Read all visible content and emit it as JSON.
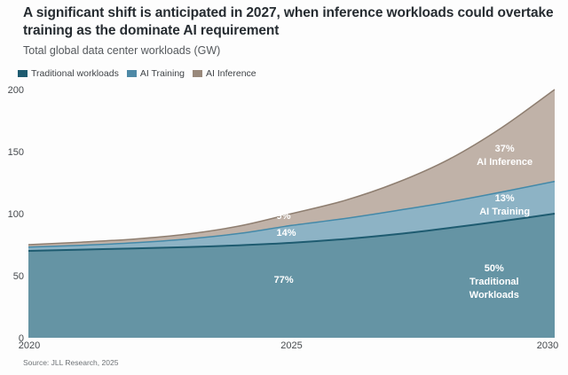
{
  "header": {
    "title": "A significant shift is anticipated in 2027, when inference workloads could overtake training as the dominate AI requirement",
    "subtitle": "Total global data center workloads (GW)"
  },
  "source": "Source: JLL Research, 2025",
  "chart_data": {
    "type": "area",
    "stacked": true,
    "title": "Total global data center workloads (GW)",
    "xlabel": "",
    "ylabel": "GW",
    "x_range": [
      2020,
      2030
    ],
    "y_range": [
      0,
      200
    ],
    "x_ticks": [
      "2020",
      "2025",
      "2030"
    ],
    "x_tick_values": [
      2020,
      2025,
      2030
    ],
    "y_ticks": [
      0,
      50,
      100,
      150,
      200
    ],
    "grid": false,
    "legend_position": "top-left",
    "x": [
      2020,
      2021,
      2022,
      2023,
      2024,
      2025,
      2026,
      2027,
      2028,
      2029,
      2030
    ],
    "series": [
      {
        "name": "Traditional workloads",
        "fill": "#6594a4",
        "stroke": "#1e5b70",
        "legend_color": "#1e5b70",
        "stroke_width": 2,
        "values": [
          70,
          71,
          72,
          73,
          74.5,
          76.5,
          79.5,
          83.5,
          88.5,
          94,
          100
        ]
      },
      {
        "name": "AI Training",
        "fill": "#8db3c5",
        "stroke": "#4389a9",
        "legend_color": "#4e89a6",
        "stroke_width": 1.5,
        "values": [
          3,
          3.5,
          4.5,
          6.5,
          9.5,
          14,
          16.5,
          19,
          21,
          23.5,
          26
        ]
      },
      {
        "name": "AI Inference",
        "fill": "#c0b2a8",
        "stroke": "#8e7e70",
        "legend_color": "#99897b",
        "stroke_width": 1.5,
        "values": [
          2,
          2.5,
          3,
          4,
          6,
          9.5,
          14.5,
          22.5,
          34.5,
          52,
          74
        ]
      }
    ],
    "annotations": [
      {
        "lines": [
          "9%"
        ],
        "x": 2024.85,
        "y": 98.5
      },
      {
        "lines": [
          "14%"
        ],
        "x": 2024.9,
        "y": 85
      },
      {
        "lines": [
          "77%"
        ],
        "x": 2024.85,
        "y": 47
      },
      {
        "lines": [
          "37%",
          "AI Inference"
        ],
        "x": 2029.05,
        "y": 153
      },
      {
        "lines": [
          "13%",
          "AI Training"
        ],
        "x": 2029.05,
        "y": 113
      },
      {
        "lines": [
          "50%",
          "Traditional",
          "Workloads"
        ],
        "x": 2028.85,
        "y": 56.5
      }
    ]
  }
}
